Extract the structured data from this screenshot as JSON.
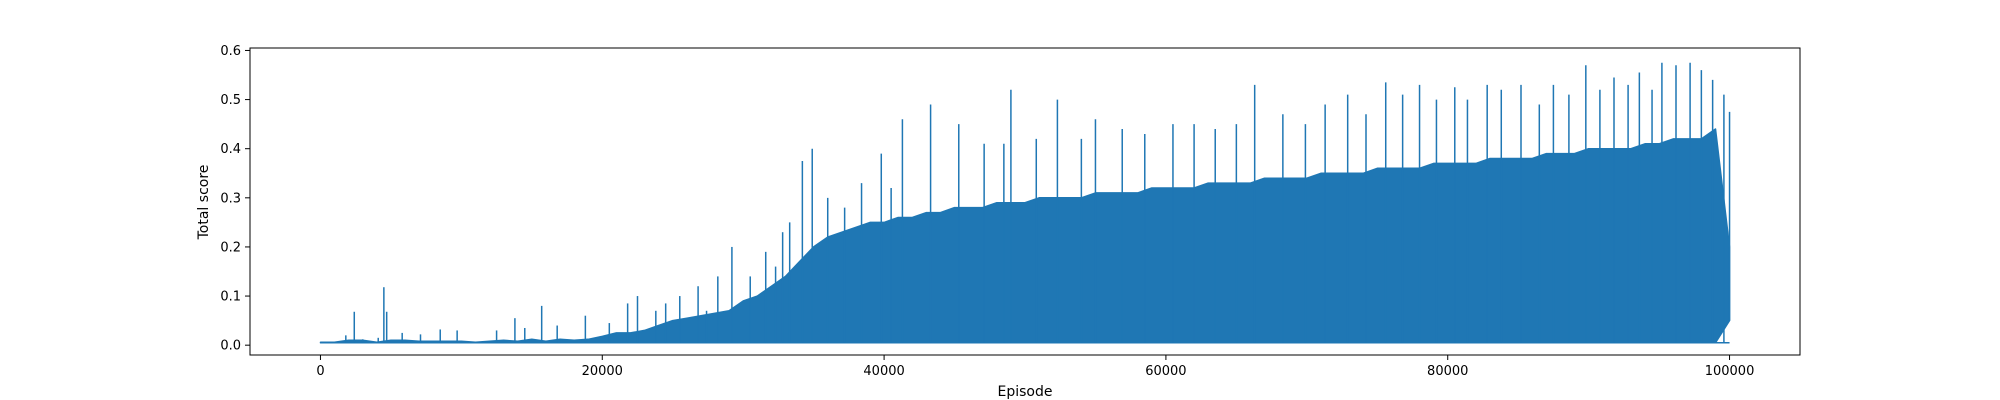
{
  "chart_data": {
    "type": "line",
    "title": "",
    "xlabel": "Episode",
    "ylabel": "Total score",
    "xlim": [
      -5000,
      105000
    ],
    "ylim": [
      -0.02,
      0.605
    ],
    "x_ticks": [
      0,
      20000,
      40000,
      60000,
      80000,
      100000
    ],
    "x_tick_labels": [
      "0",
      "20000",
      "40000",
      "60000",
      "80000",
      "100000"
    ],
    "y_ticks": [
      0.0,
      0.1,
      0.2,
      0.3,
      0.4,
      0.5,
      0.6
    ],
    "y_tick_labels": [
      "0.0",
      "0.1",
      "0.2",
      "0.3",
      "0.4",
      "0.5",
      "0.6"
    ],
    "grid": false,
    "legend": false,
    "series_color": "#1f77b4",
    "series": [
      {
        "x_start": 0,
        "x_end": 100000,
        "x_step": 1000,
        "band_low": [
          0.005,
          0.005,
          0.005,
          0.005,
          0.005,
          0.005,
          0.005,
          0.005,
          0.005,
          0.005,
          0.005,
          0.005,
          0.005,
          0.005,
          0.005,
          0.005,
          0.005,
          0.005,
          0.005,
          0.005,
          0.005,
          0.005,
          0.005,
          0.005,
          0.005,
          0.005,
          0.005,
          0.005,
          0.005,
          0.005,
          0.005,
          0.005,
          0.005,
          0.005,
          0.005,
          0.005,
          0.005,
          0.005,
          0.005,
          0.005,
          0.005,
          0.005,
          0.005,
          0.005,
          0.005,
          0.005,
          0.005,
          0.005,
          0.005,
          0.005,
          0.005,
          0.005,
          0.005,
          0.005,
          0.005,
          0.005,
          0.005,
          0.005,
          0.005,
          0.005,
          0.005,
          0.005,
          0.005,
          0.005,
          0.005,
          0.005,
          0.005,
          0.005,
          0.005,
          0.005,
          0.005,
          0.005,
          0.005,
          0.005,
          0.005,
          0.005,
          0.005,
          0.005,
          0.005,
          0.005,
          0.005,
          0.005,
          0.005,
          0.005,
          0.005,
          0.005,
          0.005,
          0.005,
          0.005,
          0.005,
          0.005,
          0.005,
          0.005,
          0.005,
          0.005,
          0.005,
          0.005,
          0.005,
          0.005,
          0.005,
          0.05
        ],
        "band_high": [
          0.006,
          0.006,
          0.01,
          0.01,
          0.006,
          0.01,
          0.01,
          0.008,
          0.008,
          0.008,
          0.008,
          0.006,
          0.008,
          0.01,
          0.008,
          0.012,
          0.008,
          0.012,
          0.01,
          0.012,
          0.018,
          0.025,
          0.025,
          0.03,
          0.04,
          0.05,
          0.055,
          0.06,
          0.065,
          0.07,
          0.09,
          0.1,
          0.12,
          0.14,
          0.17,
          0.2,
          0.22,
          0.23,
          0.24,
          0.25,
          0.25,
          0.26,
          0.26,
          0.27,
          0.27,
          0.28,
          0.28,
          0.28,
          0.29,
          0.29,
          0.29,
          0.3,
          0.3,
          0.3,
          0.3,
          0.31,
          0.31,
          0.31,
          0.31,
          0.32,
          0.32,
          0.32,
          0.32,
          0.33,
          0.33,
          0.33,
          0.33,
          0.34,
          0.34,
          0.34,
          0.34,
          0.35,
          0.35,
          0.35,
          0.35,
          0.36,
          0.36,
          0.36,
          0.36,
          0.37,
          0.37,
          0.37,
          0.37,
          0.38,
          0.38,
          0.38,
          0.38,
          0.39,
          0.39,
          0.39,
          0.4,
          0.4,
          0.4,
          0.4,
          0.41,
          0.41,
          0.42,
          0.42,
          0.42,
          0.44,
          0.2
        ],
        "spikes": [
          {
            "x": 1800,
            "y": 0.02
          },
          {
            "x": 2400,
            "y": 0.068
          },
          {
            "x": 3000,
            "y": 0.012
          },
          {
            "x": 4100,
            "y": 0.015
          },
          {
            "x": 4500,
            "y": 0.118
          },
          {
            "x": 4700,
            "y": 0.068
          },
          {
            "x": 5800,
            "y": 0.025
          },
          {
            "x": 7100,
            "y": 0.022
          },
          {
            "x": 8500,
            "y": 0.032
          },
          {
            "x": 9700,
            "y": 0.03
          },
          {
            "x": 12500,
            "y": 0.03
          },
          {
            "x": 13800,
            "y": 0.055
          },
          {
            "x": 14500,
            "y": 0.035
          },
          {
            "x": 15700,
            "y": 0.08
          },
          {
            "x": 16800,
            "y": 0.04
          },
          {
            "x": 18800,
            "y": 0.06
          },
          {
            "x": 20500,
            "y": 0.045
          },
          {
            "x": 21800,
            "y": 0.085
          },
          {
            "x": 22500,
            "y": 0.1
          },
          {
            "x": 23800,
            "y": 0.07
          },
          {
            "x": 24500,
            "y": 0.085
          },
          {
            "x": 25500,
            "y": 0.1
          },
          {
            "x": 26800,
            "y": 0.12
          },
          {
            "x": 27400,
            "y": 0.07
          },
          {
            "x": 28200,
            "y": 0.14
          },
          {
            "x": 29200,
            "y": 0.2
          },
          {
            "x": 30500,
            "y": 0.14
          },
          {
            "x": 31600,
            "y": 0.19
          },
          {
            "x": 32300,
            "y": 0.16
          },
          {
            "x": 32800,
            "y": 0.23
          },
          {
            "x": 33300,
            "y": 0.25
          },
          {
            "x": 34200,
            "y": 0.375
          },
          {
            "x": 34900,
            "y": 0.4
          },
          {
            "x": 36000,
            "y": 0.3
          },
          {
            "x": 37200,
            "y": 0.28
          },
          {
            "x": 38400,
            "y": 0.33
          },
          {
            "x": 39800,
            "y": 0.39
          },
          {
            "x": 40500,
            "y": 0.32
          },
          {
            "x": 41300,
            "y": 0.46
          },
          {
            "x": 43300,
            "y": 0.49
          },
          {
            "x": 45300,
            "y": 0.45
          },
          {
            "x": 47100,
            "y": 0.41
          },
          {
            "x": 48500,
            "y": 0.41
          },
          {
            "x": 49000,
            "y": 0.52
          },
          {
            "x": 50800,
            "y": 0.42
          },
          {
            "x": 52300,
            "y": 0.5
          },
          {
            "x": 54000,
            "y": 0.42
          },
          {
            "x": 55000,
            "y": 0.46
          },
          {
            "x": 56900,
            "y": 0.44
          },
          {
            "x": 58500,
            "y": 0.43
          },
          {
            "x": 60500,
            "y": 0.45
          },
          {
            "x": 62000,
            "y": 0.45
          },
          {
            "x": 63500,
            "y": 0.44
          },
          {
            "x": 65000,
            "y": 0.45
          },
          {
            "x": 66300,
            "y": 0.53
          },
          {
            "x": 68300,
            "y": 0.47
          },
          {
            "x": 69900,
            "y": 0.45
          },
          {
            "x": 71300,
            "y": 0.49
          },
          {
            "x": 72900,
            "y": 0.51
          },
          {
            "x": 74200,
            "y": 0.47
          },
          {
            "x": 75600,
            "y": 0.535
          },
          {
            "x": 76800,
            "y": 0.51
          },
          {
            "x": 78000,
            "y": 0.53
          },
          {
            "x": 79200,
            "y": 0.5
          },
          {
            "x": 80500,
            "y": 0.525
          },
          {
            "x": 81400,
            "y": 0.5
          },
          {
            "x": 82800,
            "y": 0.53
          },
          {
            "x": 83800,
            "y": 0.52
          },
          {
            "x": 85200,
            "y": 0.53
          },
          {
            "x": 86500,
            "y": 0.49
          },
          {
            "x": 87500,
            "y": 0.53
          },
          {
            "x": 88600,
            "y": 0.51
          },
          {
            "x": 89800,
            "y": 0.57
          },
          {
            "x": 90800,
            "y": 0.52
          },
          {
            "x": 91800,
            "y": 0.545
          },
          {
            "x": 92800,
            "y": 0.53
          },
          {
            "x": 93600,
            "y": 0.555
          },
          {
            "x": 94500,
            "y": 0.52
          },
          {
            "x": 95200,
            "y": 0.575
          },
          {
            "x": 96200,
            "y": 0.57
          },
          {
            "x": 97200,
            "y": 0.575
          },
          {
            "x": 98000,
            "y": 0.56
          },
          {
            "x": 98800,
            "y": 0.54
          },
          {
            "x": 99600,
            "y": 0.51
          }
        ]
      }
    ]
  }
}
